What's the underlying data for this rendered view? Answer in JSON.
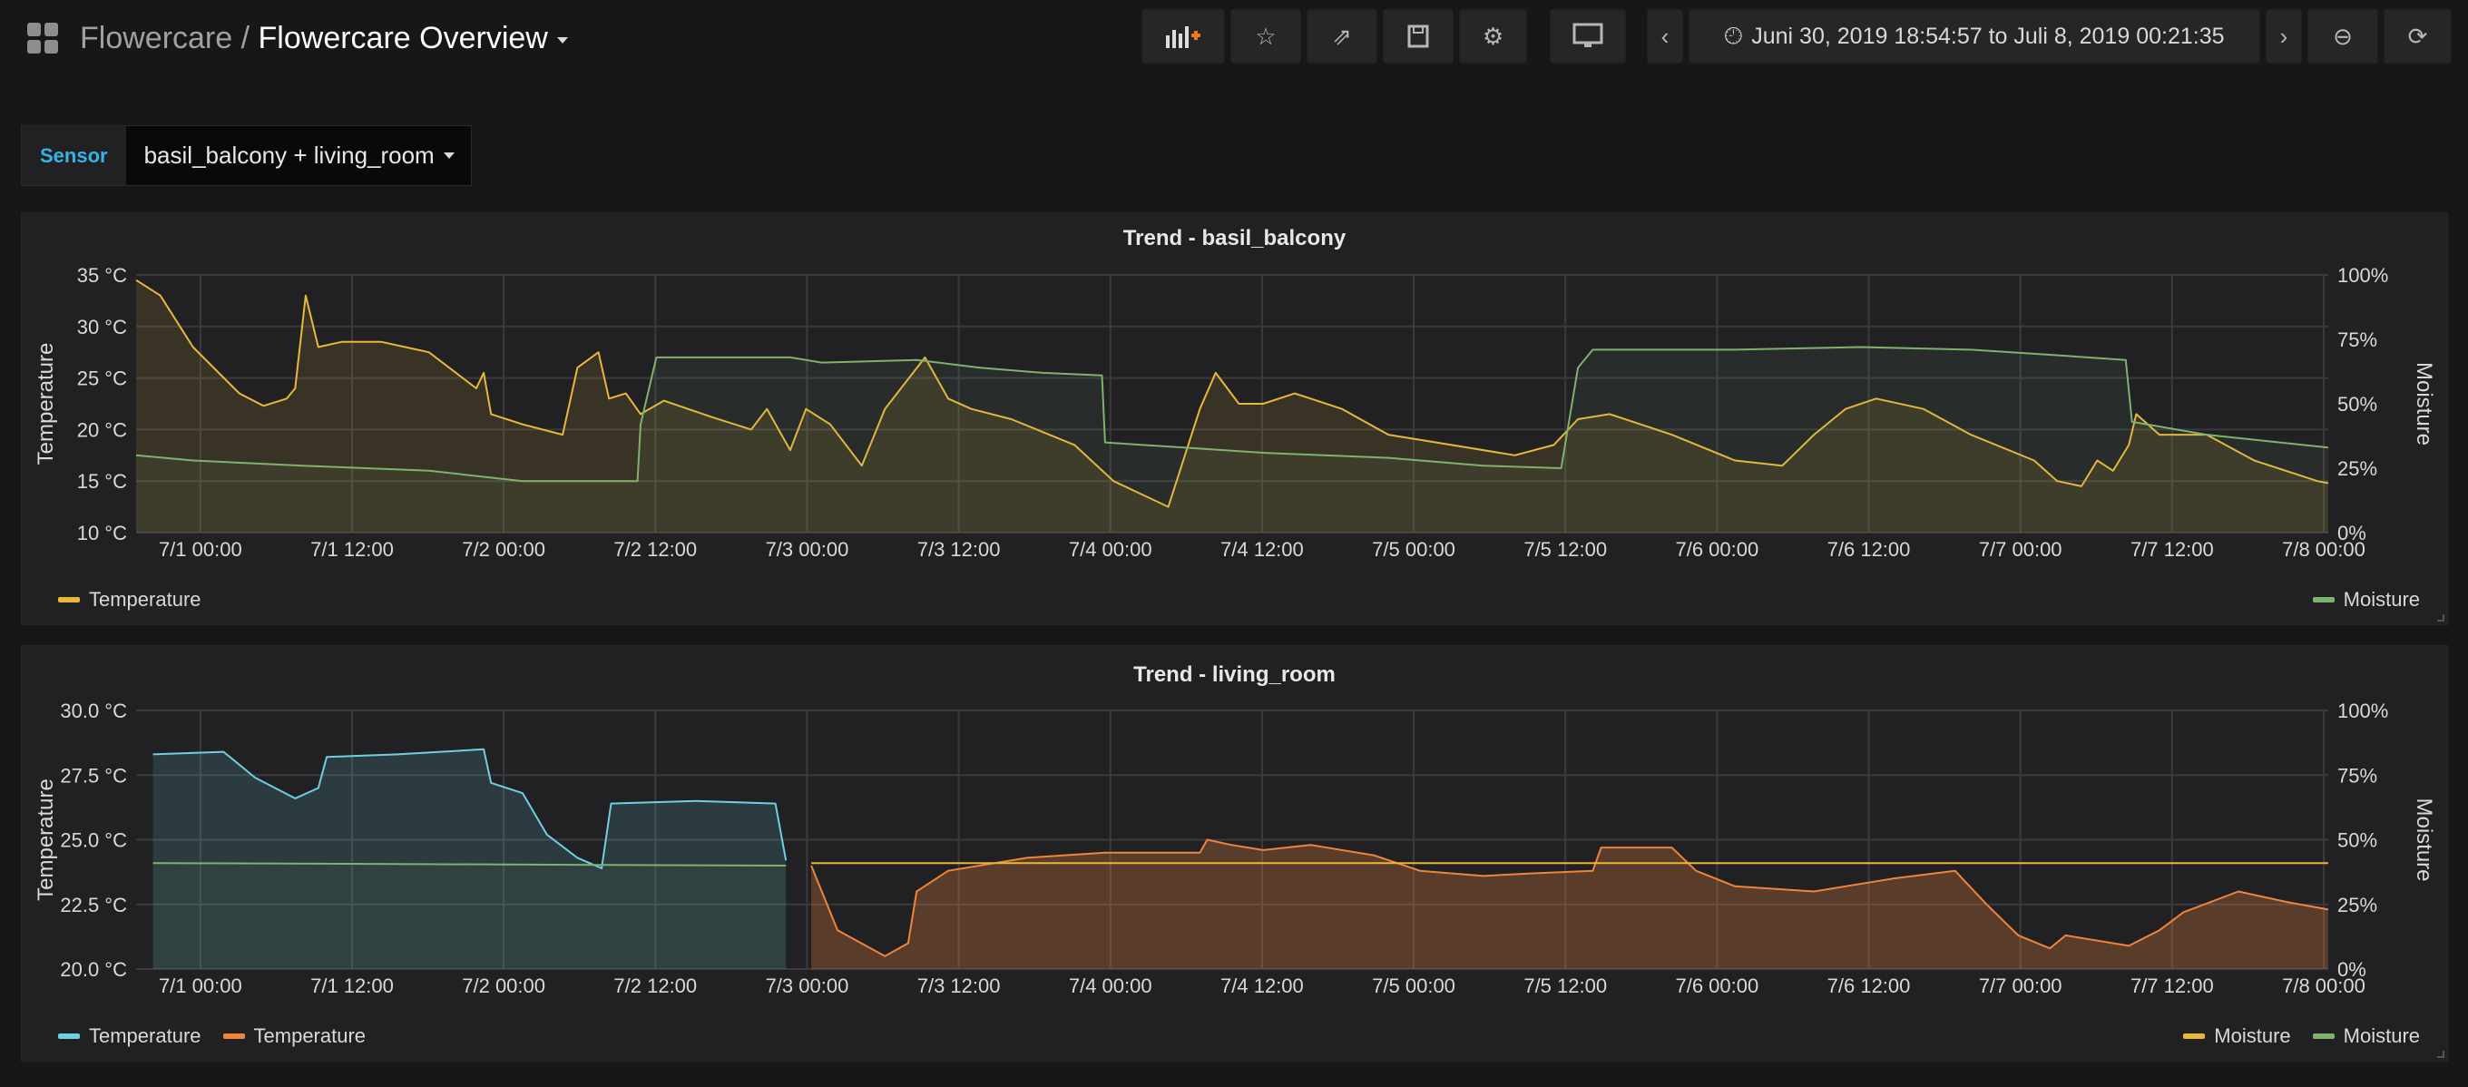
{
  "header": {
    "folder": "Flowercare",
    "separator": "/",
    "title": "Flowercare Overview",
    "buttons": [
      "add-panel-icon",
      "star-icon",
      "share-icon",
      "save-icon",
      "gear-icon",
      "tv-icon"
    ],
    "time_range": "Juni 30, 2019 18:54:57 to Juli 8, 2019 00:21:35"
  },
  "variable": {
    "label": "Sensor",
    "value": "basil_balcony + living_room"
  },
  "colors": {
    "temperature": "#EAB839",
    "moisture": "#7EB26D",
    "temp2_blue": "#6ED0E0",
    "temp2_orange": "#EF843C",
    "accent": "#33b5e5"
  },
  "chart_data": [
    {
      "type": "line",
      "title": "Trend - basil_balcony",
      "ylabel_left": "Temperature",
      "ylabel_right": "Moisture",
      "xlim": [
        "2019-06-30T18:54:57",
        "2019-07-08T00:21:35"
      ],
      "ylim_left": [
        10,
        35
      ],
      "ylim_right": [
        0,
        100
      ],
      "grid": true,
      "x_ticks": [
        {
          "t": "2019-07-01T00:00",
          "label": "7/1 00:00"
        },
        {
          "t": "2019-07-01T12:00",
          "label": "7/1 12:00"
        },
        {
          "t": "2019-07-02T00:00",
          "label": "7/2 00:00"
        },
        {
          "t": "2019-07-02T12:00",
          "label": "7/2 12:00"
        },
        {
          "t": "2019-07-03T00:00",
          "label": "7/3 00:00"
        },
        {
          "t": "2019-07-03T12:00",
          "label": "7/3 12:00"
        },
        {
          "t": "2019-07-04T00:00",
          "label": "7/4 00:00"
        },
        {
          "t": "2019-07-04T12:00",
          "label": "7/4 12:00"
        },
        {
          "t": "2019-07-05T00:00",
          "label": "7/5 00:00"
        },
        {
          "t": "2019-07-05T12:00",
          "label": "7/5 12:00"
        },
        {
          "t": "2019-07-06T00:00",
          "label": "7/6 00:00"
        },
        {
          "t": "2019-07-06T12:00",
          "label": "7/6 12:00"
        },
        {
          "t": "2019-07-07T00:00",
          "label": "7/7 00:00"
        },
        {
          "t": "2019-07-07T12:00",
          "label": "7/7 12:00"
        },
        {
          "t": "2019-07-08T00:00",
          "label": "7/8 00:00"
        }
      ],
      "y_ticks_left": [
        {
          "v": 10,
          "label": "10 °C"
        },
        {
          "v": 15,
          "label": "15 °C"
        },
        {
          "v": 20,
          "label": "20 °C"
        },
        {
          "v": 25,
          "label": "25 °C"
        },
        {
          "v": 30,
          "label": "30 °C"
        },
        {
          "v": 35,
          "label": "35 °C"
        }
      ],
      "y_ticks_right": [
        {
          "v": 0,
          "label": "0%"
        },
        {
          "v": 25,
          "label": "25%"
        },
        {
          "v": 50,
          "label": "50%"
        },
        {
          "v": 75,
          "label": "75%"
        },
        {
          "v": 100,
          "label": "100%"
        }
      ],
      "legend_left": [
        {
          "name": "Temperature",
          "color": "#EAB839"
        }
      ],
      "legend_right": [
        {
          "name": "Moisture",
          "color": "#7EB26D"
        }
      ],
      "series": [
        {
          "name": "Temperature",
          "axis": "left",
          "color": "#EAB839",
          "fill": 0.12,
          "points": [
            [
              "2019-06-30T18:55",
              34.5
            ],
            [
              "2019-06-30T20:50",
              33
            ],
            [
              "2019-06-30T23:25",
              28
            ],
            [
              "2019-07-01T03:05",
              23.5
            ],
            [
              "2019-07-01T05:00",
              22.3
            ],
            [
              "2019-07-01T06:50",
              23
            ],
            [
              "2019-07-01T07:30",
              24
            ],
            [
              "2019-07-01T08:20",
              33
            ],
            [
              "2019-07-01T09:20",
              28
            ],
            [
              "2019-07-01T11:10",
              28.5
            ],
            [
              "2019-07-01T14:20",
              28.5
            ],
            [
              "2019-07-01T18:05",
              27.5
            ],
            [
              "2019-07-01T21:50",
              24
            ],
            [
              "2019-07-01T22:25",
              25.5
            ],
            [
              "2019-07-01T23:00",
              21.5
            ],
            [
              "2019-07-02T01:30",
              20.5
            ],
            [
              "2019-07-02T04:40",
              19.5
            ],
            [
              "2019-07-02T05:50",
              26
            ],
            [
              "2019-07-02T07:30",
              27.5
            ],
            [
              "2019-07-02T08:20",
              23
            ],
            [
              "2019-07-02T09:40",
              23.5
            ],
            [
              "2019-07-02T10:50",
              21.5
            ],
            [
              "2019-07-02T12:40",
              22.8
            ],
            [
              "2019-07-02T16:30",
              21.2
            ],
            [
              "2019-07-02T19:35",
              20
            ],
            [
              "2019-07-02T20:50",
              22
            ],
            [
              "2019-07-02T22:40",
              18
            ],
            [
              "2019-07-02T23:55",
              22
            ],
            [
              "2019-07-03T01:50",
              20.5
            ],
            [
              "2019-07-03T04:20",
              16.5
            ],
            [
              "2019-07-03T06:10",
              22
            ],
            [
              "2019-07-03T09:20",
              27
            ],
            [
              "2019-07-03T11:10",
              23
            ],
            [
              "2019-07-03T13:00",
              22
            ],
            [
              "2019-07-03T16:10",
              21
            ],
            [
              "2019-07-03T21:10",
              18.5
            ],
            [
              "2019-07-04T00:15",
              15
            ],
            [
              "2019-07-04T04:35",
              12.5
            ],
            [
              "2019-07-04T07:05",
              22
            ],
            [
              "2019-07-04T08:20",
              25.5
            ],
            [
              "2019-07-04T10:10",
              22.5
            ],
            [
              "2019-07-04T12:05",
              22.5
            ],
            [
              "2019-07-04T14:35",
              23.5
            ],
            [
              "2019-07-04T18:20",
              22
            ],
            [
              "2019-07-04T22:00",
              19.5
            ],
            [
              "2019-07-05T03:00",
              18.5
            ],
            [
              "2019-07-05T08:00",
              17.5
            ],
            [
              "2019-07-05T11:05",
              18.5
            ],
            [
              "2019-07-05T13:00",
              21
            ],
            [
              "2019-07-05T15:30",
              21.5
            ],
            [
              "2019-07-05T20:25",
              19.5
            ],
            [
              "2019-07-06T01:25",
              17
            ],
            [
              "2019-07-06T05:10",
              16.5
            ],
            [
              "2019-07-06T07:40",
              19.5
            ],
            [
              "2019-07-06T10:10",
              22
            ],
            [
              "2019-07-06T12:35",
              23
            ],
            [
              "2019-07-06T16:20",
              22
            ],
            [
              "2019-07-06T20:05",
              19.5
            ],
            [
              "2019-07-07T01:05",
              17
            ],
            [
              "2019-07-07T02:55",
              15
            ],
            [
              "2019-07-07T04:50",
              14.5
            ],
            [
              "2019-07-07T06:05",
              17
            ],
            [
              "2019-07-07T07:20",
              16
            ],
            [
              "2019-07-07T08:35",
              18.5
            ],
            [
              "2019-07-07T09:10",
              21.5
            ],
            [
              "2019-07-07T11:00",
              19.5
            ],
            [
              "2019-07-07T14:45",
              19.5
            ],
            [
              "2019-07-07T18:30",
              17
            ],
            [
              "2019-07-07T23:30",
              15
            ],
            [
              "2019-07-08T00:21",
              14.8
            ]
          ]
        },
        {
          "name": "Moisture",
          "axis": "right",
          "color": "#7EB26D",
          "fill": 0.08,
          "points": [
            [
              "2019-06-30T18:55",
              30
            ],
            [
              "2019-06-30T23:25",
              28
            ],
            [
              "2019-07-01T08:05",
              26
            ],
            [
              "2019-07-01T18:05",
              24
            ],
            [
              "2019-07-02T01:30",
              20
            ],
            [
              "2019-07-02T10:35",
              20
            ],
            [
              "2019-07-02T10:50",
              42
            ],
            [
              "2019-07-02T12:05",
              68
            ],
            [
              "2019-07-02T22:40",
              68
            ],
            [
              "2019-07-03T01:10",
              66
            ],
            [
              "2019-07-03T08:40",
              67
            ],
            [
              "2019-07-03T13:40",
              64
            ],
            [
              "2019-07-03T18:40",
              62
            ],
            [
              "2019-07-03T23:20",
              61
            ],
            [
              "2019-07-03T23:35",
              35
            ],
            [
              "2019-07-04T05:50",
              33
            ],
            [
              "2019-07-04T12:05",
              31
            ],
            [
              "2019-07-04T22:00",
              29
            ],
            [
              "2019-07-05T05:30",
              26
            ],
            [
              "2019-07-05T11:40",
              25
            ],
            [
              "2019-07-05T13:00",
              64
            ],
            [
              "2019-07-05T14:10",
              71
            ],
            [
              "2019-07-06T01:25",
              71
            ],
            [
              "2019-07-06T11:25",
              72
            ],
            [
              "2019-07-06T20:05",
              71
            ],
            [
              "2019-07-07T02:20",
              69
            ],
            [
              "2019-07-07T08:20",
              67
            ],
            [
              "2019-07-07T08:50",
              43
            ],
            [
              "2019-07-07T14:45",
              38
            ],
            [
              "2019-07-08T00:21",
              33
            ]
          ]
        }
      ]
    },
    {
      "type": "line",
      "title": "Trend - living_room",
      "ylabel_left": "Temperature",
      "ylabel_right": "Moisture",
      "xlim": [
        "2019-06-30T18:54:57",
        "2019-07-08T00:21:35"
      ],
      "ylim_left": [
        20,
        30
      ],
      "ylim_right": [
        0,
        100
      ],
      "grid": true,
      "x_ticks": [
        {
          "t": "2019-07-01T00:00",
          "label": "7/1 00:00"
        },
        {
          "t": "2019-07-01T12:00",
          "label": "7/1 12:00"
        },
        {
          "t": "2019-07-02T00:00",
          "label": "7/2 00:00"
        },
        {
          "t": "2019-07-02T12:00",
          "label": "7/2 12:00"
        },
        {
          "t": "2019-07-03T00:00",
          "label": "7/3 00:00"
        },
        {
          "t": "2019-07-03T12:00",
          "label": "7/3 12:00"
        },
        {
          "t": "2019-07-04T00:00",
          "label": "7/4 00:00"
        },
        {
          "t": "2019-07-04T12:00",
          "label": "7/4 12:00"
        },
        {
          "t": "2019-07-05T00:00",
          "label": "7/5 00:00"
        },
        {
          "t": "2019-07-05T12:00",
          "label": "7/5 12:00"
        },
        {
          "t": "2019-07-06T00:00",
          "label": "7/6 00:00"
        },
        {
          "t": "2019-07-06T12:00",
          "label": "7/6 12:00"
        },
        {
          "t": "2019-07-07T00:00",
          "label": "7/7 00:00"
        },
        {
          "t": "2019-07-07T12:00",
          "label": "7/7 12:00"
        },
        {
          "t": "2019-07-08T00:00",
          "label": "7/8 00:00"
        }
      ],
      "y_ticks_left": [
        {
          "v": 20,
          "label": "20.0 °C"
        },
        {
          "v": 22.5,
          "label": "22.5 °C"
        },
        {
          "v": 25,
          "label": "25.0 °C"
        },
        {
          "v": 27.5,
          "label": "27.5 °C"
        },
        {
          "v": 30,
          "label": "30.0 °C"
        }
      ],
      "y_ticks_right": [
        {
          "v": 0,
          "label": "0%"
        },
        {
          "v": 25,
          "label": "25%"
        },
        {
          "v": 50,
          "label": "50%"
        },
        {
          "v": 75,
          "label": "75%"
        },
        {
          "v": 100,
          "label": "100%"
        }
      ],
      "legend_left": [
        {
          "name": "Temperature",
          "color": "#6ED0E0"
        },
        {
          "name": "Temperature",
          "color": "#EF843C"
        }
      ],
      "legend_right": [
        {
          "name": "Moisture",
          "color": "#EAB839"
        },
        {
          "name": "Moisture",
          "color": "#7EB26D"
        }
      ],
      "series": [
        {
          "name": "Temperature",
          "axis": "left",
          "color": "#6ED0E0",
          "fill": 0.15,
          "points": [
            [
              "2019-06-30T20:15",
              28.3
            ],
            [
              "2019-07-01T01:50",
              28.4
            ],
            [
              "2019-07-01T04:20",
              27.4
            ],
            [
              "2019-07-01T07:30",
              26.6
            ],
            [
              "2019-07-01T09:20",
              27.0
            ],
            [
              "2019-07-01T10:00",
              28.2
            ],
            [
              "2019-07-01T15:35",
              28.3
            ],
            [
              "2019-07-01T22:25",
              28.5
            ],
            [
              "2019-07-01T23:00",
              27.2
            ],
            [
              "2019-07-02T01:30",
              26.8
            ],
            [
              "2019-07-02T03:25",
              25.2
            ],
            [
              "2019-07-02T05:50",
              24.3
            ],
            [
              "2019-07-02T07:45",
              23.9
            ],
            [
              "2019-07-02T08:30",
              26.4
            ],
            [
              "2019-07-02T15:15",
              26.5
            ],
            [
              "2019-07-02T21:30",
              26.4
            ],
            [
              "2019-07-02T22:20",
              24.2
            ]
          ]
        },
        {
          "name": "Moisture",
          "axis": "right",
          "color": "#7EB26D",
          "fill": 0.05,
          "points": [
            [
              "2019-06-30T20:15",
              41
            ],
            [
              "2019-07-02T22:20",
              40
            ]
          ]
        },
        {
          "name": "Temperature",
          "axis": "left",
          "color": "#EF843C",
          "fill": 0.28,
          "points": [
            [
              "2019-07-03T00:20",
              24
            ],
            [
              "2019-07-03T02:25",
              21.5
            ],
            [
              "2019-07-03T06:10",
              20.5
            ],
            [
              "2019-07-03T08:00",
              21
            ],
            [
              "2019-07-03T08:40",
              23
            ],
            [
              "2019-07-03T11:10",
              23.8
            ],
            [
              "2019-07-03T17:25",
              24.3
            ],
            [
              "2019-07-03T23:35",
              24.5
            ],
            [
              "2019-07-04T07:05",
              24.5
            ],
            [
              "2019-07-04T07:40",
              25
            ],
            [
              "2019-07-04T09:35",
              24.8
            ],
            [
              "2019-07-04T12:05",
              24.6
            ],
            [
              "2019-07-04T15:50",
              24.8
            ],
            [
              "2019-07-04T20:50",
              24.4
            ],
            [
              "2019-07-05T00:30",
              23.8
            ],
            [
              "2019-07-05T05:30",
              23.6
            ],
            [
              "2019-07-05T09:15",
              23.7
            ],
            [
              "2019-07-05T14:10",
              23.8
            ],
            [
              "2019-07-05T14:50",
              24.7
            ],
            [
              "2019-07-05T20:25",
              24.7
            ],
            [
              "2019-07-05T22:20",
              23.8
            ],
            [
              "2019-07-06T01:25",
              23.2
            ],
            [
              "2019-07-06T07:40",
              23.0
            ],
            [
              "2019-07-06T13:55",
              23.5
            ],
            [
              "2019-07-06T18:50",
              23.8
            ],
            [
              "2019-07-06T21:20",
              22.5
            ],
            [
              "2019-07-06T23:50",
              21.3
            ],
            [
              "2019-07-07T02:20",
              20.8
            ],
            [
              "2019-07-07T03:35",
              21.3
            ],
            [
              "2019-07-07T08:35",
              20.9
            ],
            [
              "2019-07-07T11:00",
              21.5
            ],
            [
              "2019-07-07T12:55",
              22.2
            ],
            [
              "2019-07-07T17:15",
              23
            ],
            [
              "2019-07-07T21:00",
              22.6
            ],
            [
              "2019-07-08T00:21",
              22.3
            ]
          ]
        },
        {
          "name": "Moisture",
          "axis": "right",
          "color": "#EAB839",
          "fill": 0,
          "points": [
            [
              "2019-07-03T00:20",
              41
            ],
            [
              "2019-07-08T00:21",
              41
            ]
          ]
        }
      ]
    }
  ]
}
